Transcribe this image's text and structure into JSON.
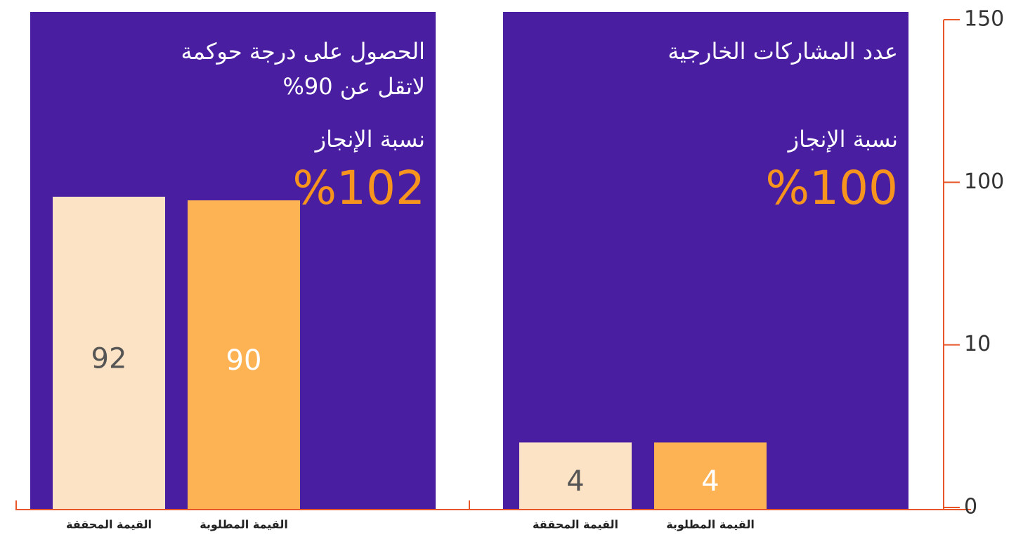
{
  "chart_data": [
    {
      "type": "bar",
      "title": [
        "الحصول على درجة حوكمة",
        "لاتقل عن 90%"
      ],
      "subtitle": "نسبة الإنجاز",
      "annotation": "%102",
      "categories": [
        "القيمة المحققة",
        "القيمة المطلوبة"
      ],
      "values": [
        92,
        90
      ],
      "colors": [
        "#fde3c5",
        "#fdb354"
      ],
      "background": "#4a1ea0"
    },
    {
      "type": "bar",
      "title": [
        "عدد المشاركات الخارجية"
      ],
      "subtitle": "نسبة الإنجاز",
      "annotation": "%100",
      "categories": [
        "القيمة المحققة",
        "القيمة المطلوبة"
      ],
      "values": [
        4,
        4
      ],
      "colors": [
        "#fde3c5",
        "#fdb354"
      ],
      "background": "#4a1ea0",
      "ylim": [
        0,
        150
      ],
      "yticks": [
        0,
        10,
        100,
        150
      ]
    }
  ]
}
